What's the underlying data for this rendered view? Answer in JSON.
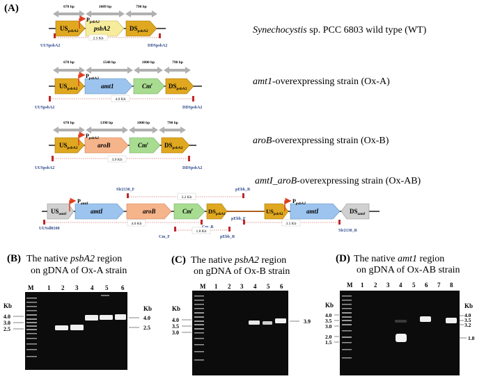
{
  "panel_a": {
    "label": "(A)",
    "constructs": [
      {
        "id": "wt",
        "caption_italic": "Synechocystis",
        "caption_rest": " sp. PCC 6803 wild type (WT)",
        "promoter": "P",
        "promoter_sub": "psbA2",
        "genes": [
          {
            "main": "US",
            "sub": "psbA2",
            "color": "#e0a820"
          },
          {
            "main": "psbA2",
            "sub": "",
            "color": "#f6ec9c"
          },
          {
            "main": "DS",
            "sub": "psbA2",
            "color": "#e0a820"
          }
        ],
        "sizes": [
          "670 bp",
          "1089 bp",
          "790 bp"
        ],
        "pcr_size": "2.5 Kb",
        "primer_left": "UUSpsbA2",
        "primer_right": "DDSpsbA2"
      },
      {
        "id": "oxa",
        "caption_italic": "amt1",
        "caption_rest": "-overexpressing strain (Ox-A)",
        "promoter": "P",
        "promoter_sub": "psbA2",
        "genes": [
          {
            "main": "US",
            "sub": "psbA2",
            "color": "#e0a820"
          },
          {
            "main": "amt1",
            "sub": "",
            "color": "#9cc4ee"
          },
          {
            "main": "Cm",
            "sup": "r",
            "color": "#a8dc90"
          },
          {
            "main": "DS",
            "sub": "psbA2",
            "color": "#e0a820"
          }
        ],
        "sizes": [
          "670 bp",
          "1548 bp",
          "1000 bp",
          "790 bp"
        ],
        "pcr_size": "4.0 Kb",
        "primer_left": "UUSpsbA2",
        "primer_right": "DDSpsbA2"
      },
      {
        "id": "oxb",
        "caption_italic": "aroB",
        "caption_rest": "-overexpressing strain (Ox-B)",
        "promoter": "P",
        "promoter_sub": "psbA2",
        "genes": [
          {
            "main": "US",
            "sub": "psbA2",
            "color": "#e0a820"
          },
          {
            "main": "aroB",
            "sub": "",
            "color": "#f6b48a"
          },
          {
            "main": "Cm",
            "sup": "r",
            "color": "#a8dc90"
          },
          {
            "main": "DS",
            "sub": "psbA2",
            "color": "#e0a820"
          }
        ],
        "sizes": [
          "670 bp",
          "1398 bp",
          "1000 bp",
          "790 bp"
        ],
        "pcr_size": "3.9 Kb",
        "primer_left": "UUSpsbA2",
        "primer_right": "DDSpsbA2"
      },
      {
        "id": "oxab",
        "caption_italic": "amtI_aroB",
        "caption_rest": "-overexpressing strain (Ox-AB)",
        "promoter_1": "P",
        "promoter_1_sub": "amtI",
        "promoter_2": "P",
        "promoter_2_sub": "psbA2",
        "genes": [
          {
            "main": "US",
            "sub": "amtI",
            "color": "#d0d0d0"
          },
          {
            "main": "amtI",
            "sub": "",
            "color": "#9cc4ee"
          },
          {
            "main": "aroB",
            "sub": "",
            "color": "#f6b48a"
          },
          {
            "main": "Cm",
            "sup": "r",
            "color": "#a8dc90"
          },
          {
            "main": "DS",
            "sub": "psbA2",
            "color": "#e0a820"
          },
          {
            "main": "US",
            "sub": "psbA2",
            "color": "#e0a820"
          },
          {
            "main": "amtI",
            "sub": "",
            "color": "#9cc4ee"
          },
          {
            "main": "DS",
            "sub": "amtI",
            "color": "#d0d0d0"
          }
        ],
        "primers": [
          "Slr2130_F",
          "pEbb_R",
          "pEbb_F",
          "UUSsll0108",
          "Cm_R",
          "Slr2130_R",
          "Cm_F",
          "pEbb_R"
        ],
        "pcr_sizes": [
          "3.2 Kb",
          "4.0 Kb",
          "3.5 Kb",
          "1.8 Kb"
        ]
      }
    ]
  },
  "gels": [
    {
      "label": "(B)",
      "title_pre": "The native ",
      "title_italic": "psbA2",
      "title_post": " region",
      "title_line2": "on gDNA of Ox-A strain",
      "lanes": [
        "M",
        "1",
        "2",
        "3",
        "4",
        "5",
        "6"
      ],
      "kb_label_left": "Kb",
      "markers": [
        "4.0",
        "3.0",
        "2.5"
      ],
      "kb_label_right": "Kb",
      "right_marks": [
        "4.0",
        "2.5"
      ]
    },
    {
      "label": "(C)",
      "title_pre": "The native ",
      "title_italic": "psbA2",
      "title_post": " region",
      "title_line2": "on gDNA of Ox-B strain",
      "lanes": [
        "M",
        "1",
        "2",
        "3",
        "4",
        "5",
        "6"
      ],
      "kb_label_left": "Kb",
      "markers": [
        "4.0",
        "3.5",
        "3.0"
      ],
      "right_marks": [
        "3.9"
      ]
    },
    {
      "label": "(D)",
      "title_pre": "The native ",
      "title_italic": "amt1",
      "title_post": " region",
      "title_line2": "on gDNA of Ox-AB strain",
      "lanes": [
        "M",
        "1",
        "2",
        "3",
        "4",
        "5",
        "6",
        "7",
        "8"
      ],
      "kb_label_left": "Kb",
      "markers": [
        "4.0",
        "3.5",
        "3.0",
        "2.0",
        "1.5"
      ],
      "kb_label_right": "Kb",
      "right_marks": [
        "4.0",
        "3.5",
        "3.2",
        "1.8"
      ]
    }
  ],
  "colors": {
    "backbone": "#555555",
    "size_arrow": "#b0b0b0",
    "primer": "#c0282a",
    "primer_text": "#2e4a8a",
    "promoter": "#e04020",
    "gel_bg": "#0c0c0c",
    "band": "#f0f0f0"
  }
}
